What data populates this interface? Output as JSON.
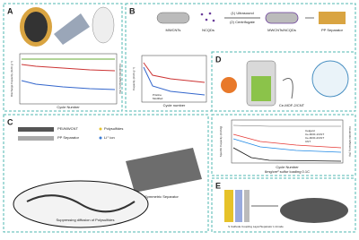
{
  "panel_a": {
    "label": "A",
    "y_label": "Discharge Capacity (mAh g⁻¹)",
    "x_label": "Cycle Number",
    "y2_label": "Coulombic Efficiency (%)"
  },
  "panel_b": {
    "label": "B",
    "items": [
      "MWCNTs",
      "NCQDs",
      "MWCNTs/NCQDs",
      "PP Separator"
    ],
    "steps": [
      "(1) Ultrasound",
      "(2) Centrifugate"
    ],
    "chart": {
      "x_label": "Cycle number",
      "y_label": "Capacity (mAh g⁻¹)",
      "legend": [
        "Pristine",
        "Modified"
      ]
    }
  },
  "panel_c": {
    "label": "C",
    "legend": [
      "PEI/MWCNT",
      "PP Separator",
      "Polysulfides",
      "Li⁺ ion"
    ],
    "labels": [
      "Symmetric Separator",
      "Suppressing diffusion of Polysulfides"
    ]
  },
  "panel_d": {
    "label": "D",
    "caption": "Ce-MOF-2/CNT"
  },
  "chart_mid": {
    "x_label": "Cycle Number",
    "y_label": "Specific Capacity (mAh/g)",
    "y2_label": "Coulombic Efficiency (%)",
    "note": "6mg/cm² sulfur loading  0.1C",
    "legend": [
      "Celgard",
      "Ce-MOF-1/CNT",
      "Ce-MOF-2/CNT",
      "CNT"
    ]
  },
  "panel_e": {
    "label": "E",
    "bottom": "S Cathode   Coupling Layer/Separator   Li Anode"
  }
}
